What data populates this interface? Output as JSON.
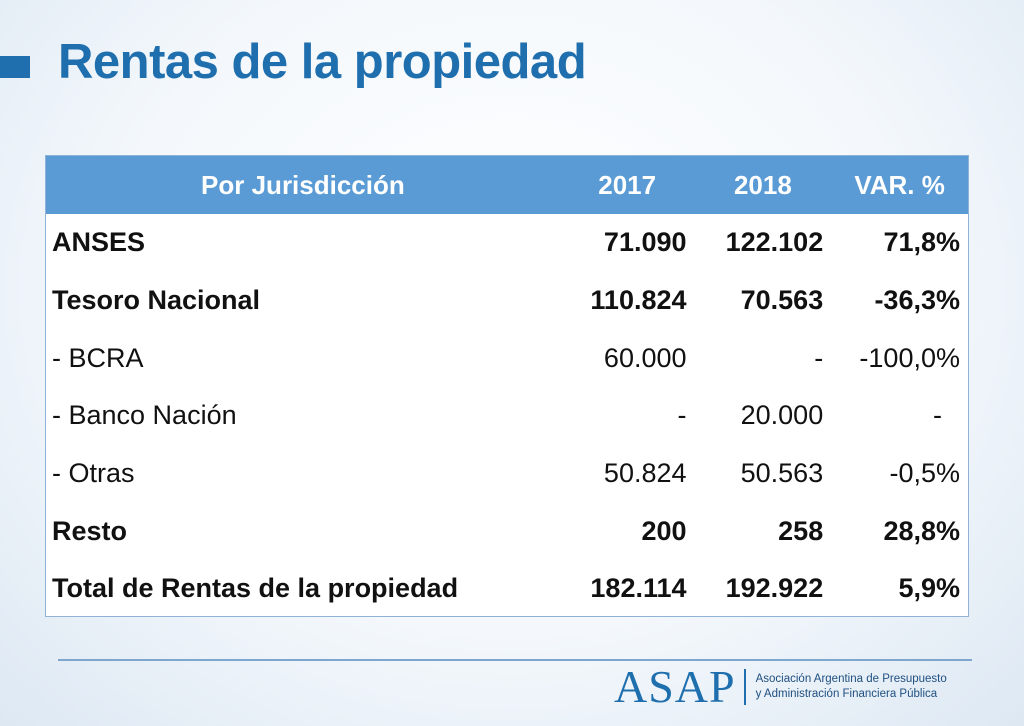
{
  "title": "Rentas de la propiedad",
  "table": {
    "headers": [
      "Por Jurisdicción",
      "2017",
      "2018",
      "VAR. %"
    ],
    "rows": [
      {
        "label": "ANSES",
        "v2017": "71.090",
        "v2018": "122.102",
        "var": "71,8%",
        "bold": true
      },
      {
        "label": "Tesoro Nacional",
        "v2017": "110.824",
        "v2018": "70.563",
        "var": "-36,3%",
        "bold": true
      },
      {
        "label": "- BCRA",
        "v2017": "60.000",
        "v2018": "-",
        "var": "-100,0%",
        "bold": false
      },
      {
        "label": "- Banco Nación",
        "v2017": "-",
        "v2018": "20.000",
        "var": "-",
        "bold": false
      },
      {
        "label": "- Otras",
        "v2017": "50.824",
        "v2018": "50.563",
        "var": "-0,5%",
        "bold": false
      },
      {
        "label": "Resto",
        "v2017": "200",
        "v2018": "258",
        "var": "28,8%",
        "bold": true
      },
      {
        "label": "Total de Rentas de la propiedad",
        "v2017": "182.114",
        "v2018": "192.922",
        "var": "5,9%",
        "bold": true
      }
    ]
  },
  "logo": {
    "mark": "ASAP",
    "line1": "Asociación Argentina de Presupuesto",
    "line2": "y Administración Financiera Pública"
  },
  "colors": {
    "accent": "#1f6fae",
    "header_bg": "#5b9bd5"
  }
}
